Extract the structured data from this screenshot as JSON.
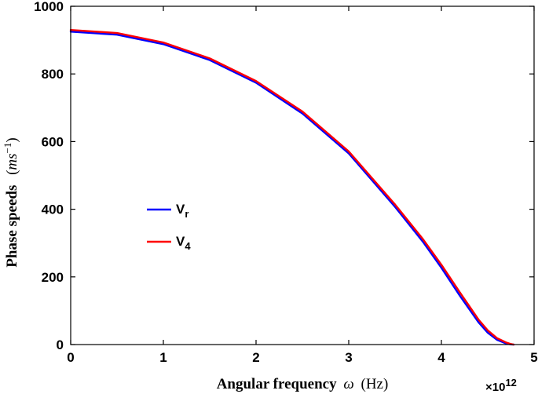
{
  "chart_data": {
    "type": "line",
    "xlabel": {
      "text": "Angular frequency",
      "symbol": "ω",
      "unit": "(Hz)"
    },
    "ylabel": {
      "text": "Phase speeds",
      "unit_base": "ms",
      "unit_exp": "−1"
    },
    "x_multiplier": {
      "base": "×10",
      "exp": "12"
    },
    "xlim": [
      0,
      5
    ],
    "ylim": [
      0,
      1000
    ],
    "xticks": [
      "0",
      "1",
      "2",
      "3",
      "4",
      "5"
    ],
    "yticks": [
      "0",
      "200",
      "400",
      "600",
      "800",
      "1000"
    ],
    "xtick_values": [
      0,
      1,
      2,
      3,
      4,
      5
    ],
    "ytick_values": [
      0,
      200,
      400,
      600,
      800,
      1000
    ],
    "grid": false,
    "legend_position": "left-center",
    "series": [
      {
        "name": "V",
        "subscript": "r",
        "color": "#0000ff",
        "x": [
          0,
          0.5,
          1.0,
          1.5,
          2.0,
          2.5,
          3.0,
          3.5,
          3.8,
          4.0,
          4.2,
          4.4,
          4.5,
          4.6,
          4.7,
          4.75,
          4.78
        ],
        "y": [
          925,
          916,
          888,
          841,
          774,
          683,
          565,
          407,
          304,
          227,
          144,
          66,
          35,
          14,
          3,
          0.5,
          0
        ]
      },
      {
        "name": "V",
        "subscript": "4",
        "color": "#ff0000",
        "x": [
          0,
          0.5,
          1.0,
          1.5,
          2.0,
          2.5,
          3.0,
          3.5,
          3.8,
          4.0,
          4.2,
          4.4,
          4.5,
          4.6,
          4.7,
          4.75,
          4.78
        ],
        "y": [
          930,
          921,
          893,
          846,
          779,
          689,
          571,
          414,
          312,
          236,
          154,
          74,
          42,
          19,
          6,
          1.5,
          0
        ]
      }
    ]
  }
}
